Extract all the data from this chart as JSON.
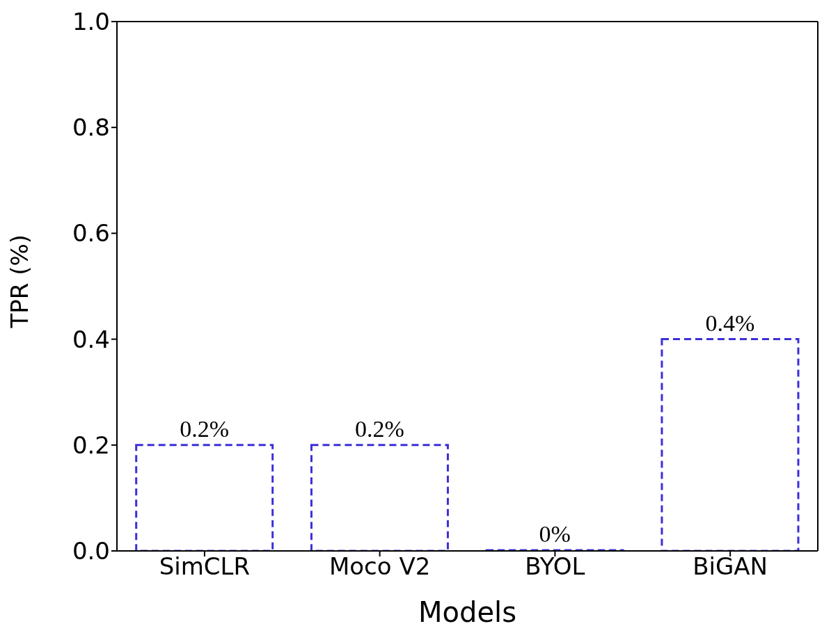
{
  "chart_data": {
    "type": "bar",
    "xlabel": "Models",
    "ylabel": "TPR (%)",
    "categories": [
      "SimCLR",
      "Moco V2",
      "BYOL",
      "BiGAN"
    ],
    "values": [
      0.2,
      0.2,
      0,
      0.4
    ],
    "value_labels": [
      "0.2%",
      "0.2%",
      "0%",
      "0.4%"
    ],
    "color": "#3b2fd9",
    "line_style": "dashed",
    "ylim": [
      0,
      1
    ],
    "yticks": [
      {
        "value": 0,
        "label": "0.0"
      },
      0.2,
      0.4,
      0.6,
      0.8,
      {
        "value": 1,
        "label": "1.0"
      }
    ],
    "grid": false,
    "legend": false
  }
}
